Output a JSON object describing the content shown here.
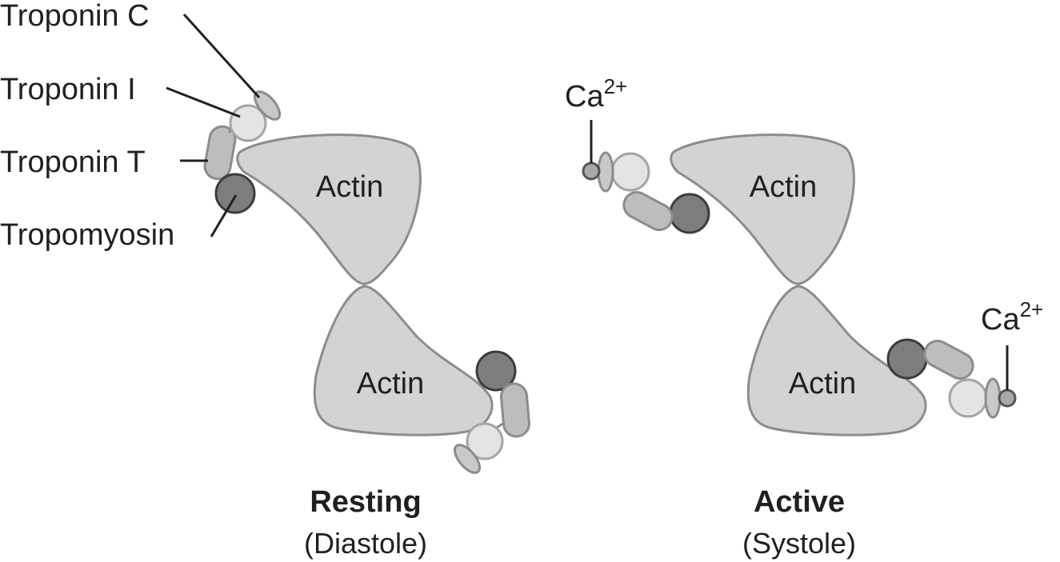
{
  "labels": {
    "troponin_c": "Troponin C",
    "troponin_i": "Troponin I",
    "troponin_t": "Troponin T",
    "tropomyosin": "Tropomyosin"
  },
  "actin_label": "Actin",
  "calcium": {
    "symbol": "Ca",
    "charge": "2+"
  },
  "states": {
    "resting": {
      "title": "Resting",
      "subtitle": "(Diastole)"
    },
    "active": {
      "title": "Active",
      "subtitle": "(Systole)"
    }
  },
  "colors": {
    "actin_fill": "#d3d3d3",
    "actin_stroke": "#8c8c8c",
    "tropomyosin_fill": "#7d7d7d",
    "tropomyosin_stroke": "#3c3c3c",
    "troponin_t_fill": "#bdbdbd",
    "troponin_i_fill": "#e4e4e4",
    "troponin_c_fill": "#c9c9c9",
    "calcium_fill": "#a8a8a8",
    "text": "#231f20"
  }
}
